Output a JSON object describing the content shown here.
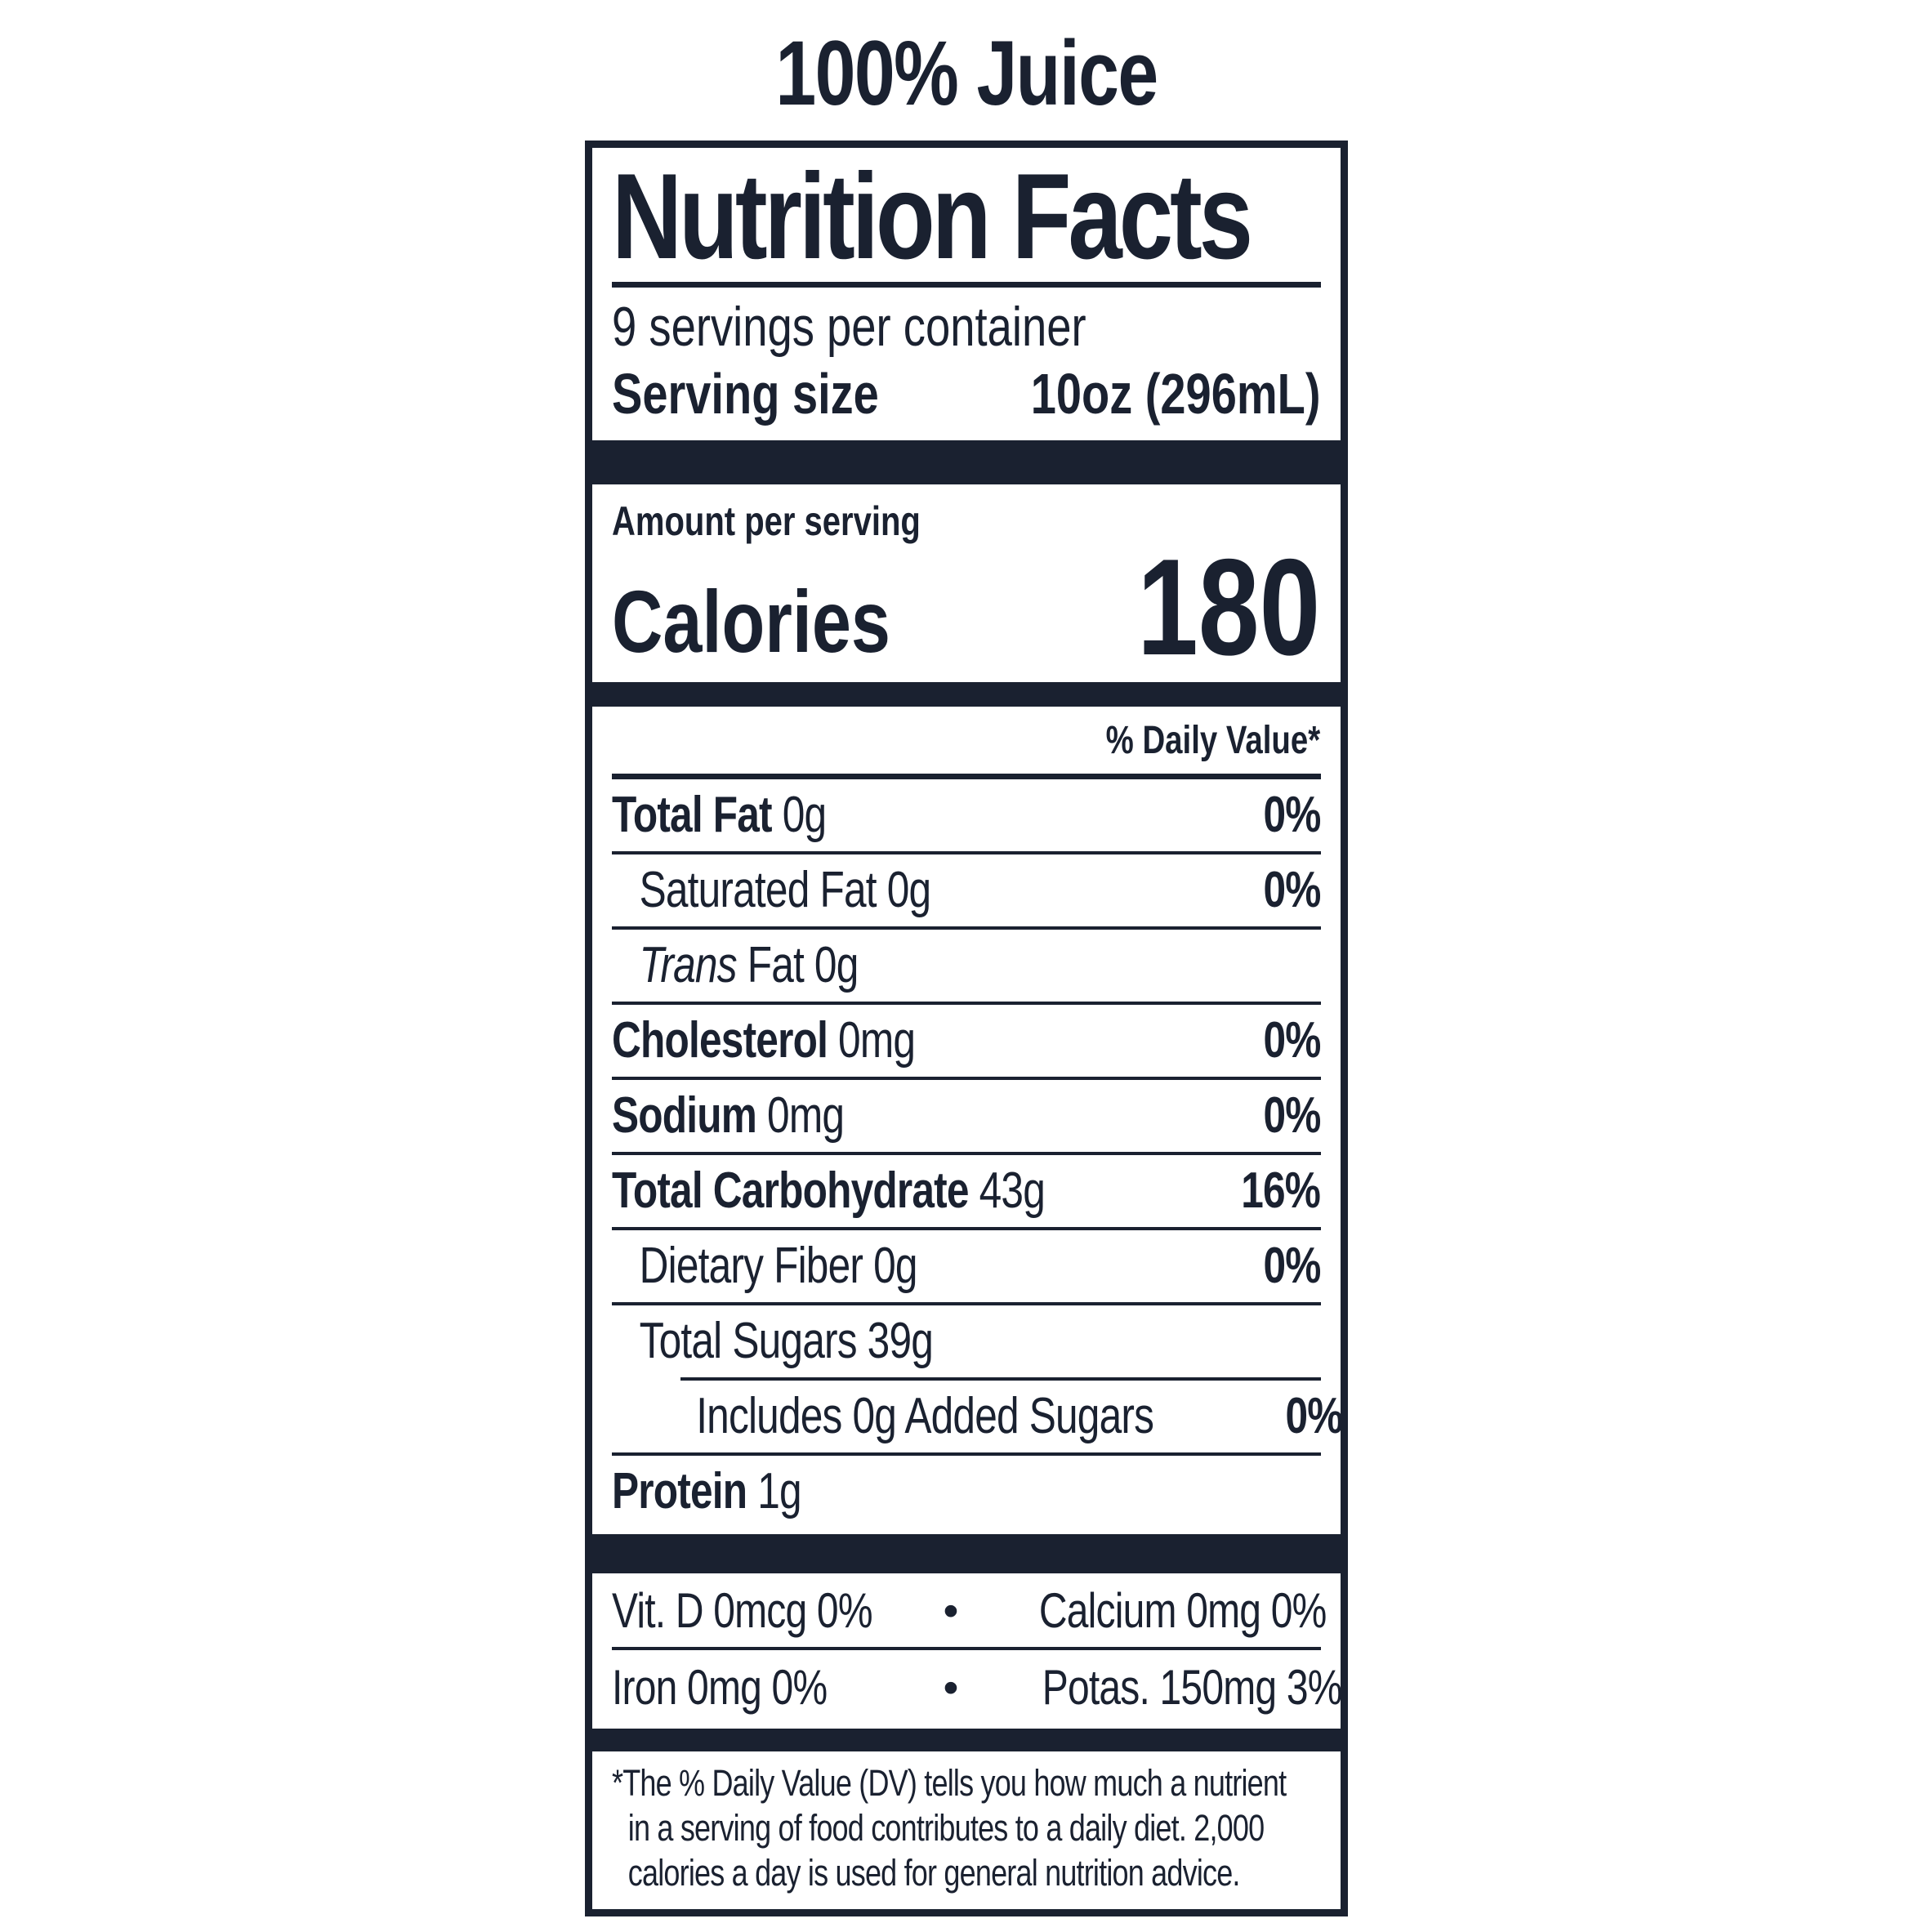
{
  "colors": {
    "ink": "#1a2130",
    "background": "#ffffff"
  },
  "title": "100% Juice",
  "panel": {
    "heading": "Nutrition Facts",
    "servings_per_container": "9 servings per container",
    "serving_size": {
      "label": "Serving size",
      "value": "10oz (296mL)"
    },
    "amount_per_serving_label": "Amount per serving",
    "calories": {
      "label": "Calories",
      "value": "180"
    },
    "daily_value_header": "% Daily Value*",
    "nutrient_rows": [
      {
        "name_bold": "Total Fat",
        "name_rest": " 0g",
        "dv": "0%"
      },
      {
        "name_rest": "Saturated Fat 0g",
        "dv": "0%"
      },
      {
        "name_italic": "Trans",
        "name_rest": " Fat 0g",
        "dv": ""
      },
      {
        "name_bold": "Cholesterol",
        "name_rest": " 0mg",
        "dv": "0%"
      },
      {
        "name_bold": "Sodium",
        "name_rest": " 0mg",
        "dv": "0%"
      },
      {
        "name_bold": "Total Carbohydrate",
        "name_rest": " 43g",
        "dv": "16%"
      },
      {
        "name_rest": "Dietary Fiber 0g",
        "dv": "0%"
      },
      {
        "name_rest": "Total Sugars 39g",
        "dv": ""
      },
      {
        "name_rest": "Includes 0g Added Sugars",
        "dv": "0%"
      },
      {
        "name_bold": "Protein",
        "name_rest": " 1g",
        "dv": ""
      }
    ],
    "micronutrients": [
      {
        "left": "Vit. D 0mcg 0%",
        "separator": "•",
        "right": "Calcium 0mg 0%"
      },
      {
        "left": "Iron 0mg 0%",
        "separator": "•",
        "right": "Potas. 150mg 3%"
      }
    ],
    "footnote": "*The % Daily Value (DV) tells you how much a nutrient in a serving of food contributes to a daily diet. 2,000 calories a day is used for general nutrition advice."
  }
}
